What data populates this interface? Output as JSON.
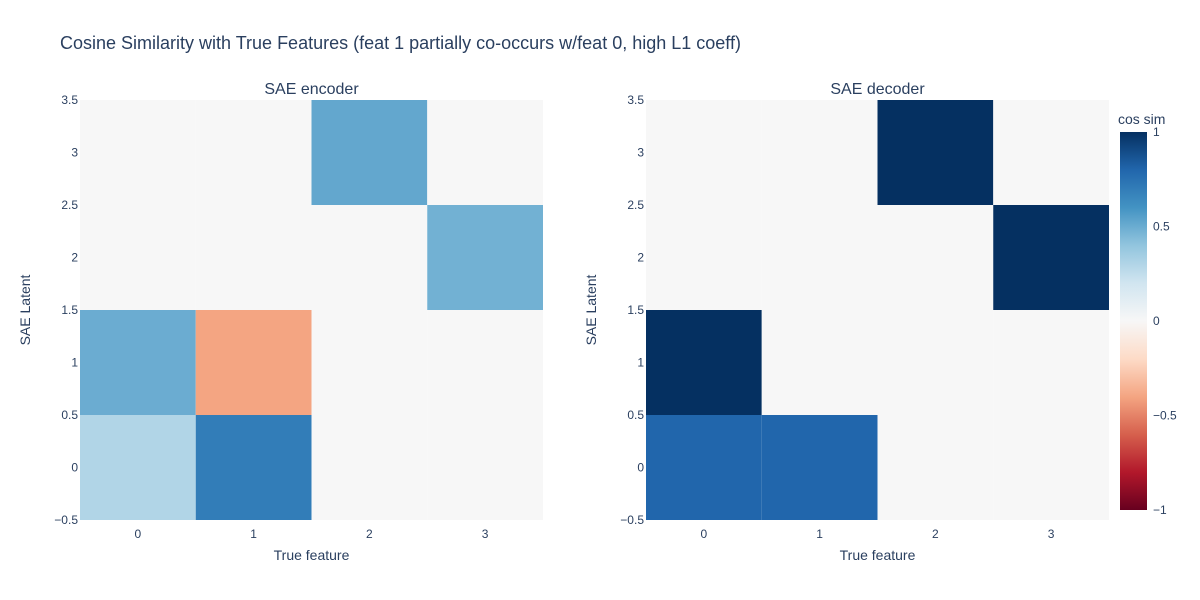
{
  "title": "Cosine Similarity with True Features (feat 1 partially co-occurs w/feat 0, high L1 coeff)",
  "colorbar": {
    "title": "cos sim",
    "ticks": [
      1,
      0.5,
      0,
      -0.5,
      -1
    ],
    "tick_labels": [
      "1",
      "0.5",
      "0",
      "−0.5",
      "−1"
    ],
    "colorscale": "RdBu",
    "zmin": -1,
    "zmax": 1
  },
  "chart_data": [
    {
      "type": "heatmap",
      "title": "SAE encoder",
      "xlabel": "True feature",
      "ylabel": "SAE Latent",
      "x": [
        0,
        1,
        2,
        3
      ],
      "y": [
        0,
        1,
        2,
        3
      ],
      "xlim": [
        -0.5,
        3.5
      ],
      "ylim": [
        -0.5,
        3.5
      ],
      "xticks": [
        "0",
        "1",
        "2",
        "3"
      ],
      "yticks": [
        "−0.5",
        "0",
        "0.5",
        "1",
        "1.5",
        "2",
        "2.5",
        "3",
        "3.5"
      ],
      "z": [
        [
          0.3,
          0.7,
          0.0,
          0.0
        ],
        [
          0.5,
          -0.4,
          0.0,
          0.0
        ],
        [
          0.0,
          0.0,
          0.0,
          0.48
        ],
        [
          0.0,
          0.0,
          0.52,
          0.0
        ]
      ]
    },
    {
      "type": "heatmap",
      "title": "SAE decoder",
      "xlabel": "True feature",
      "ylabel": "SAE Latent",
      "x": [
        0,
        1,
        2,
        3
      ],
      "y": [
        0,
        1,
        2,
        3
      ],
      "xlim": [
        -0.5,
        3.5
      ],
      "ylim": [
        -0.5,
        3.5
      ],
      "xticks": [
        "0",
        "1",
        "2",
        "3"
      ],
      "yticks": [
        "−0.5",
        "0",
        "0.5",
        "1",
        "1.5",
        "2",
        "2.5",
        "3",
        "3.5"
      ],
      "z": [
        [
          0.8,
          0.8,
          0.0,
          0.0
        ],
        [
          1.0,
          0.0,
          0.0,
          0.0
        ],
        [
          0.0,
          0.0,
          0.0,
          1.0
        ],
        [
          0.0,
          0.0,
          1.0,
          0.0
        ]
      ]
    }
  ]
}
